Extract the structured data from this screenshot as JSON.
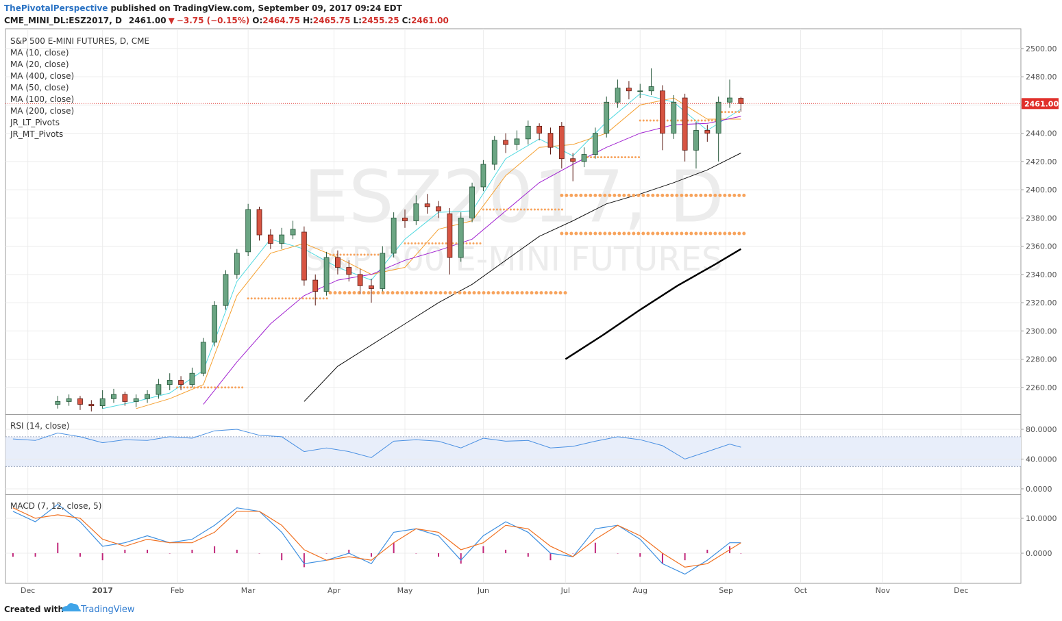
{
  "header": {
    "author": "ThePivotalPerspective",
    "published": "published on TradingView.com, September 09, 2017 09:24 EDT",
    "symbol": "CME_MINI_DL:ESZ2017, D",
    "last": "2461.00",
    "arrow": "▼",
    "change": "−3.75 (−0.15%)",
    "o_label": "O:",
    "open": "2464.75",
    "h_label": "H:",
    "high": "2465.75",
    "l_label": "L:",
    "low": "2455.25",
    "c_label": "C:",
    "close": "2461.00"
  },
  "footer": {
    "created": "Created with",
    "brand": "TradingView"
  },
  "chart_data": {
    "type": "candlestick",
    "title": "S&P 500 E-MINI FUTURES, D, CME",
    "watermark": [
      "ESZ2017, D",
      "S&P 500 E-MINI FUTURES"
    ],
    "x": [
      14,
      17,
      20,
      23,
      26,
      29,
      32,
      35,
      38,
      41,
      44,
      47,
      50,
      53,
      56,
      59,
      62,
      65,
      68,
      71,
      74,
      77,
      80,
      83,
      86,
      89,
      92,
      95,
      98,
      101,
      104,
      107,
      110,
      113,
      116,
      119,
      122,
      125,
      128,
      131,
      134,
      137,
      140,
      143,
      146,
      149,
      152,
      155,
      158,
      161,
      164,
      167,
      170,
      173,
      176,
      179,
      182,
      185,
      188,
      191,
      194,
      197
    ],
    "open": [
      2248,
      2250,
      2252,
      2248,
      2247,
      2252,
      2255,
      2250,
      2252,
      2255,
      2262,
      2265,
      2262,
      2270,
      2292,
      2318,
      2340,
      2356,
      2386,
      2368,
      2362,
      2368,
      2370,
      2336,
      2328,
      2352,
      2345,
      2340,
      2332,
      2330,
      2355,
      2380,
      2378,
      2390,
      2388,
      2383,
      2352,
      2380,
      2402,
      2418,
      2435,
      2432,
      2436,
      2445,
      2440,
      2445,
      2422,
      2420,
      2425,
      2440,
      2462,
      2472,
      2470,
      2470,
      2470,
      2440,
      2465,
      2428,
      2442,
      2440,
      2462,
      2464.75
    ],
    "high": [
      2254,
      2255,
      2254,
      2251,
      2258,
      2259,
      2257,
      2255,
      2258,
      2266,
      2270,
      2268,
      2274,
      2295,
      2321,
      2343,
      2358,
      2390,
      2388,
      2372,
      2373,
      2378,
      2374,
      2340,
      2356,
      2357,
      2350,
      2344,
      2337,
      2360,
      2384,
      2386,
      2396,
      2397,
      2392,
      2387,
      2384,
      2405,
      2421,
      2438,
      2440,
      2442,
      2449,
      2447,
      2444,
      2448,
      2426,
      2430,
      2444,
      2466,
      2478,
      2477,
      2475,
      2486,
      2474,
      2467,
      2468,
      2448,
      2446,
      2466,
      2478,
      2465.75
    ],
    "low": [
      2245,
      2247,
      2244,
      2243,
      2245,
      2249,
      2247,
      2246,
      2249,
      2252,
      2258,
      2258,
      2260,
      2268,
      2289,
      2315,
      2337,
      2353,
      2364,
      2358,
      2358,
      2365,
      2332,
      2318,
      2325,
      2340,
      2335,
      2326,
      2320,
      2328,
      2352,
      2373,
      2375,
      2383,
      2380,
      2340,
      2349,
      2377,
      2399,
      2414,
      2426,
      2428,
      2432,
      2435,
      2425,
      2415,
      2406,
      2416,
      2422,
      2437,
      2458,
      2464,
      2465,
      2467,
      2428,
      2436,
      2420,
      2415,
      2434,
      2420,
      2458,
      2455.25
    ],
    "close": [
      2250,
      2252,
      2248,
      2247,
      2252,
      2255,
      2250,
      2252,
      2255,
      2262,
      2265,
      2262,
      2270,
      2292,
      2318,
      2340,
      2355,
      2386,
      2368,
      2362,
      2368,
      2372,
      2336,
      2328,
      2352,
      2345,
      2340,
      2332,
      2330,
      2355,
      2380,
      2378,
      2390,
      2388,
      2385,
      2352,
      2380,
      2402,
      2418,
      2435,
      2432,
      2436,
      2445,
      2440,
      2430,
      2422,
      2420,
      2425,
      2440,
      2462,
      2472,
      2470,
      2470,
      2473,
      2440,
      2462,
      2428,
      2442,
      2440,
      2462,
      2465,
      2461
    ],
    "up_color": "#6ba583",
    "down_color": "#d75442",
    "border_up": "#225437",
    "border_down": "#5b1a13",
    "xlim": [
      0,
      272
    ],
    "xticks": [
      {
        "value": 6,
        "label": "Dec"
      },
      {
        "value": 26,
        "label": "2017"
      },
      {
        "value": 46,
        "label": "Feb"
      },
      {
        "value": 65,
        "label": "Mar"
      },
      {
        "value": 88,
        "label": "Apr"
      },
      {
        "value": 107,
        "label": "May"
      },
      {
        "value": 128,
        "label": "Jun"
      },
      {
        "value": 150,
        "label": "Jul"
      },
      {
        "value": 170,
        "label": "Aug"
      },
      {
        "value": 193,
        "label": "Sep"
      },
      {
        "value": 213,
        "label": "Oct"
      },
      {
        "value": 235,
        "label": "Nov"
      },
      {
        "value": 256,
        "label": "Dec"
      }
    ],
    "ylim": [
      2241,
      2514
    ],
    "yticks": [
      {
        "value": 2260,
        "label": "2260.00"
      },
      {
        "value": 2280,
        "label": "2280.00"
      },
      {
        "value": 2300,
        "label": "2300.00"
      },
      {
        "value": 2320,
        "label": "2320.00"
      },
      {
        "value": 2340,
        "label": "2340.00"
      },
      {
        "value": 2360,
        "label": "2360.00"
      },
      {
        "value": 2380,
        "label": "2380.00"
      },
      {
        "value": 2400,
        "label": "2400.00"
      },
      {
        "value": 2420,
        "label": "2420.00"
      },
      {
        "value": 2440,
        "label": "2440.00"
      },
      {
        "value": 2460,
        "label": "2460.00"
      },
      {
        "value": 2480,
        "label": "2480.00"
      },
      {
        "value": 2500,
        "label": "2500.00"
      }
    ],
    "grid": true,
    "last_price": {
      "value": 2461,
      "label": "2461.00",
      "color": "#e0302b"
    },
    "overlays": [
      {
        "name": "MA (10, close)",
        "color": "#4fd9e0",
        "width": 1,
        "x": [
          26,
          35,
          44,
          53,
          62,
          71,
          80,
          89,
          98,
          107,
          116,
          125,
          134,
          143,
          152,
          161,
          170,
          179,
          188,
          197
        ],
        "values": [
          2245,
          2250,
          2256,
          2272,
          2335,
          2365,
          2358,
          2345,
          2336,
          2365,
          2384,
          2385,
          2422,
          2436,
          2424,
          2448,
          2468,
          2462,
          2442,
          2457
        ]
      },
      {
        "name": "MA (20, close)",
        "color": "#f5a030",
        "width": 1,
        "x": [
          35,
          44,
          53,
          62,
          71,
          80,
          89,
          98,
          107,
          116,
          125,
          134,
          143,
          152,
          161,
          170,
          179,
          188,
          197
        ],
        "values": [
          2245,
          2252,
          2262,
          2325,
          2355,
          2362,
          2352,
          2340,
          2345,
          2372,
          2378,
          2410,
          2430,
          2432,
          2440,
          2460,
          2465,
          2450,
          2450
        ]
      },
      {
        "name": "MA (400, close)",
        "color": "#2a6fd6",
        "width": 1,
        "x": [],
        "values": []
      },
      {
        "name": "MA (50, close)",
        "color": "#a020d0",
        "width": 1,
        "x": [
          53,
          62,
          71,
          80,
          89,
          98,
          107,
          116,
          125,
          134,
          143,
          152,
          161,
          170,
          179,
          188,
          197
        ],
        "values": [
          2248,
          2278,
          2305,
          2325,
          2336,
          2340,
          2350,
          2357,
          2365,
          2385,
          2405,
          2418,
          2430,
          2440,
          2446,
          2447,
          2452
        ]
      },
      {
        "name": "MA (100, close)",
        "color": "#111111",
        "width": 1,
        "x": [
          80,
          89,
          98,
          107,
          116,
          125,
          134,
          143,
          152,
          161,
          170,
          179,
          188,
          197
        ],
        "values": [
          2250,
          2275,
          2290,
          2305,
          2320,
          2333,
          2350,
          2367,
          2378,
          2390,
          2397,
          2405,
          2414,
          2426
        ]
      },
      {
        "name": "MA (200, close)",
        "color": "#000000",
        "width": 2.5,
        "x": [
          150,
          160,
          170,
          180,
          190,
          197
        ],
        "values": [
          2280,
          2297,
          2315,
          2332,
          2347,
          2358
        ]
      }
    ],
    "pivots": [
      {
        "name": "JR_LT_Pivots",
        "color": "#f7a35c",
        "size": 5,
        "segments": [
          {
            "level": 2327,
            "x": [
              87,
              150
            ]
          },
          {
            "level": 2396,
            "x": [
              149,
              198
            ]
          },
          {
            "level": 2369,
            "x": [
              149,
              198
            ]
          }
        ]
      },
      {
        "name": "JR_MT_Pivots",
        "color": "#f7a35c",
        "size": 3,
        "segments": [
          {
            "level": 2260,
            "x": [
              46,
              64
            ]
          },
          {
            "level": 2323,
            "x": [
              65,
              87
            ]
          },
          {
            "level": 2354,
            "x": [
              87,
              101
            ]
          },
          {
            "level": 2362,
            "x": [
              107,
              128
            ]
          },
          {
            "level": 2386,
            "x": [
              128,
              150
            ]
          },
          {
            "level": 2423,
            "x": [
              155,
              170
            ]
          },
          {
            "level": 2449,
            "x": [
              170,
              191
            ]
          },
          {
            "level": 2455,
            "x": [
              191,
              197
            ]
          }
        ]
      }
    ],
    "panels": [
      {
        "type": "line",
        "title": "RSI (14, close)",
        "color": "#4a90e2",
        "band": [
          30,
          70
        ],
        "band_color": "#e8eefa",
        "x": [
          2,
          8,
          14,
          20,
          26,
          32,
          38,
          44,
          50,
          56,
          62,
          68,
          74,
          80,
          86,
          92,
          98,
          104,
          110,
          116,
          122,
          128,
          134,
          140,
          146,
          152,
          158,
          164,
          170,
          176,
          182,
          188,
          194,
          197
        ],
        "values": [
          67,
          65,
          75,
          70,
          62,
          66,
          65,
          70,
          68,
          78,
          80,
          72,
          70,
          50,
          55,
          50,
          42,
          64,
          66,
          64,
          55,
          68,
          64,
          65,
          55,
          57,
          64,
          70,
          66,
          58,
          40,
          50,
          60,
          56
        ],
        "ylim": [
          -7.4,
          99.3
        ],
        "yticks": [
          {
            "value": 0,
            "label": "0.0000"
          },
          {
            "value": 40,
            "label": "40.0000"
          },
          {
            "value": 80,
            "label": "80.0000"
          }
        ]
      },
      {
        "type": "macd",
        "title": "MACD (7, 12, close, 5)",
        "x": [
          2,
          8,
          14,
          20,
          26,
          32,
          38,
          44,
          50,
          56,
          62,
          68,
          74,
          80,
          86,
          92,
          98,
          104,
          110,
          116,
          122,
          128,
          134,
          140,
          146,
          152,
          158,
          164,
          170,
          176,
          182,
          188,
          194,
          197
        ],
        "series": [
          {
            "color": "#3d8fe0",
            "values": [
              12,
              9,
              14,
              9,
              2,
              3,
              5,
              3,
              4,
              8,
              13,
              12,
              6,
              -3,
              -2,
              0,
              -3,
              6,
              7,
              5,
              -2,
              5,
              9,
              6,
              0,
              -1,
              7,
              8,
              4,
              -3,
              -6,
              -2,
              3,
              3
            ]
          },
          {
            "color": "#f07020",
            "values": [
              13,
              10,
              11,
              10,
              4,
              2,
              4,
              3,
              3,
              6,
              12,
              12,
              8,
              1,
              -2,
              -1,
              -2,
              3,
              7,
              6,
              1,
              3,
              8,
              7,
              2,
              -1,
              4,
              8,
              5,
              0,
              -4,
              -3,
              1,
              3
            ]
          }
        ],
        "histogram": {
          "color": "#c0267a",
          "values": [
            -1,
            -1,
            3,
            -1,
            -2,
            1,
            1,
            0,
            1,
            2,
            1,
            0,
            -2,
            -4,
            0,
            1,
            -1,
            3,
            0,
            -1,
            -3,
            2,
            1,
            -1,
            -2,
            0,
            3,
            0,
            -1,
            -3,
            -2,
            1,
            2,
            0
          ]
        },
        "ylim": [
          -8.63,
          16.67
        ],
        "yticks": [
          {
            "value": 0,
            "label": "0.0000"
          },
          {
            "value": 10,
            "label": "10.0000"
          }
        ]
      }
    ]
  }
}
